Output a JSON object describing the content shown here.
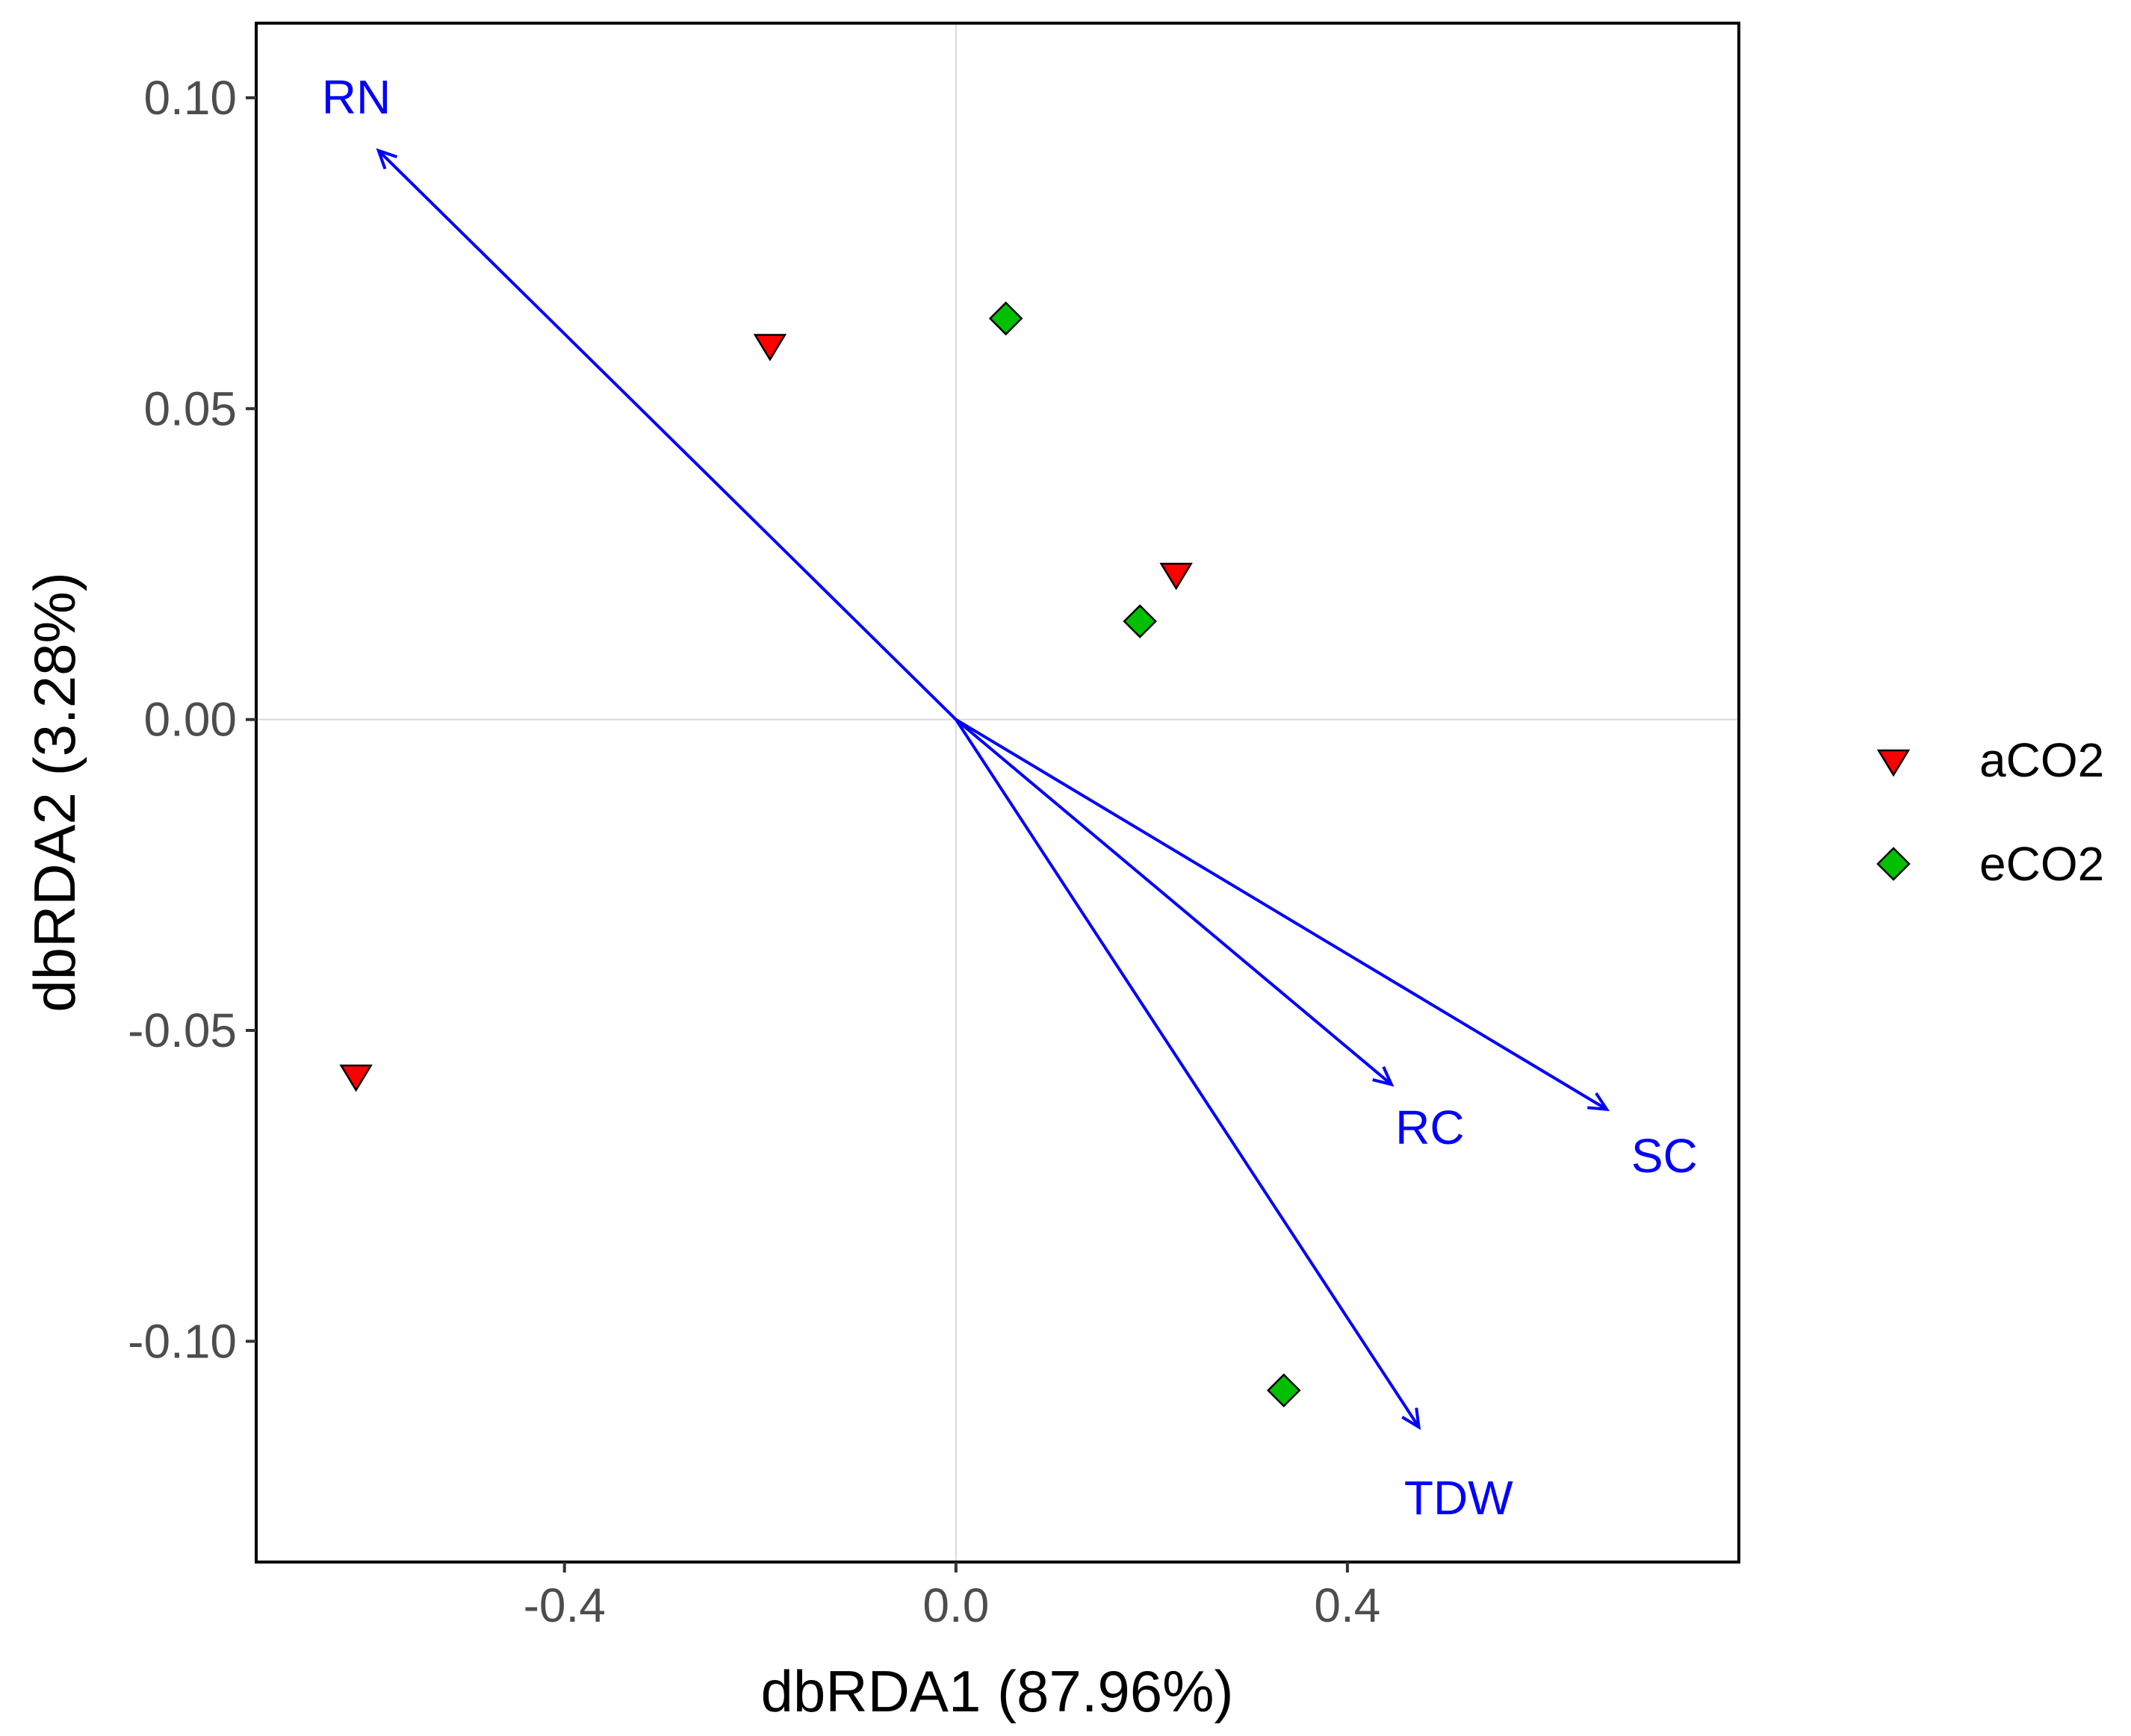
{
  "chart_data": {
    "type": "scatter",
    "title": "",
    "xlabel": "dbRDA1 (87.96%)",
    "ylabel": "dbRDA2 (3.28%)",
    "xlim": [
      -0.715,
      0.8
    ],
    "ylim": [
      -0.1355,
      0.112
    ],
    "x_ticks": [
      -0.4,
      0.0,
      0.4
    ],
    "x_tick_labels": [
      "-0.4",
      "0.0",
      "0.4"
    ],
    "y_ticks": [
      0.1,
      0.05,
      0.0,
      -0.05,
      -0.1
    ],
    "y_tick_labels": [
      "0.10",
      "0.05",
      "0.00",
      "-0.05",
      "-0.10"
    ],
    "reference_lines": {
      "x": 0,
      "y": 0
    },
    "series": [
      {
        "name": "aCO2",
        "marker": "triangle-down",
        "color": "#ff0000",
        "points": [
          {
            "x": -0.19,
            "y": 0.0603
          },
          {
            "x": 0.225,
            "y": 0.0235
          },
          {
            "x": -0.613,
            "y": -0.0572
          }
        ]
      },
      {
        "name": "eCO2",
        "marker": "diamond",
        "color": "#00c000",
        "points": [
          {
            "x": 0.051,
            "y": 0.0645
          },
          {
            "x": 0.188,
            "y": 0.0158
          },
          {
            "x": 0.335,
            "y": -0.1079
          }
        ]
      }
    ],
    "arrows": [
      {
        "label": "RN",
        "x": -0.59,
        "y": 0.0915,
        "label_x": -0.648,
        "label_y": 0.1001
      },
      {
        "label": "RC",
        "x": 0.445,
        "y": -0.0587,
        "label_x": 0.449,
        "label_y": -0.0656
      },
      {
        "label": "SC",
        "x": 0.665,
        "y": -0.0627,
        "label_x": 0.69,
        "label_y": -0.0702
      },
      {
        "label": "TDW",
        "x": 0.473,
        "y": -0.1138,
        "label_x": 0.458,
        "label_y": -0.1252
      }
    ],
    "arrow_color": "#0000ff",
    "legend": {
      "position": "right",
      "entries": [
        "aCO2",
        "eCO2"
      ]
    }
  }
}
